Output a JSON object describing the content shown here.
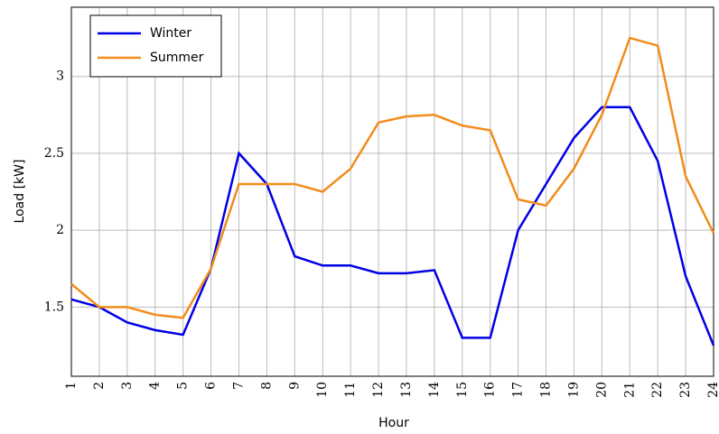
{
  "chart_data": {
    "type": "line",
    "xlabel": "Hour",
    "ylabel": "Load [kW]",
    "x": [
      1,
      2,
      3,
      4,
      5,
      6,
      7,
      8,
      9,
      10,
      11,
      12,
      13,
      14,
      15,
      16,
      17,
      18,
      19,
      20,
      21,
      22,
      23,
      24
    ],
    "series": [
      {
        "name": "Winter",
        "color": "#0000e6",
        "values": [
          1.55,
          1.5,
          1.4,
          1.35,
          1.32,
          1.75,
          2.5,
          2.3,
          1.83,
          1.77,
          1.77,
          1.72,
          1.72,
          1.74,
          1.3,
          1.3,
          2.0,
          2.3,
          2.6,
          2.8,
          2.8,
          2.45,
          1.7,
          1.25
        ]
      },
      {
        "name": "Summer",
        "color": "#f28c1c",
        "values": [
          1.65,
          1.5,
          1.5,
          1.45,
          1.43,
          1.75,
          2.3,
          2.3,
          2.3,
          2.25,
          2.4,
          2.7,
          2.74,
          2.75,
          2.68,
          2.65,
          2.2,
          2.16,
          2.4,
          2.75,
          3.25,
          3.2,
          2.35,
          1.98
        ]
      }
    ],
    "xlim": [
      1,
      24
    ],
    "xticks": [
      1,
      2,
      3,
      4,
      5,
      6,
      7,
      8,
      9,
      10,
      11,
      12,
      13,
      14,
      15,
      16,
      17,
      18,
      19,
      20,
      21,
      22,
      23,
      24
    ],
    "ylim": [
      1.05,
      3.45
    ],
    "yticks": [
      1.5,
      2,
      2.5,
      3
    ],
    "grid": true,
    "legend": "upper left"
  }
}
